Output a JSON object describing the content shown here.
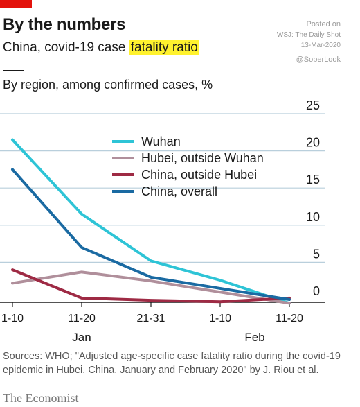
{
  "header": {
    "title": "By the numbers",
    "subtitle_prefix": "China, covid-19 case ",
    "subtitle_highlight": "fatality ratio",
    "chart_label": "By region, among confirmed cases, %"
  },
  "watermark": {
    "line1": "Posted on",
    "line2": "WSJ: The Daily Shot",
    "line3": "13-Mar-2020",
    "handle": "@SoberLook"
  },
  "footer": {
    "sources": "Sources: WHO; \"Adjusted age-specific case fatality ratio during the covid-19 epidemic in Hubei, China, January and February 2020\" by J. Riou et al.",
    "logo": "The Economist"
  },
  "chart_data": {
    "type": "line",
    "x": [
      "1-10",
      "11-20",
      "21-31",
      "1-10",
      "11-20"
    ],
    "month_labels": [
      {
        "label": "Jan",
        "index": 1
      },
      {
        "label": "Feb",
        "index": 3.5
      }
    ],
    "ylim": [
      0,
      25
    ],
    "yticks": [
      0,
      5,
      10,
      15,
      20,
      25
    ],
    "grid": true,
    "legend": "top-center",
    "series": [
      {
        "name": "Wuhan",
        "color": "#2ec4d6",
        "values": [
          21.5,
          11.5,
          5.2,
          2.6,
          -0.5
        ]
      },
      {
        "name": "Hubei, outside Wuhan",
        "color": "#b08f9b",
        "values": [
          2.2,
          3.7,
          2.5,
          1.0,
          -0.5
        ]
      },
      {
        "name": "China, outside Hubei",
        "color": "#9e2a44",
        "values": [
          4.0,
          0.2,
          -0.1,
          -0.3,
          0.2
        ]
      },
      {
        "name": "China, overall",
        "color": "#1a6aa2",
        "values": [
          17.5,
          7.0,
          3.0,
          1.5,
          0.0
        ]
      }
    ]
  }
}
